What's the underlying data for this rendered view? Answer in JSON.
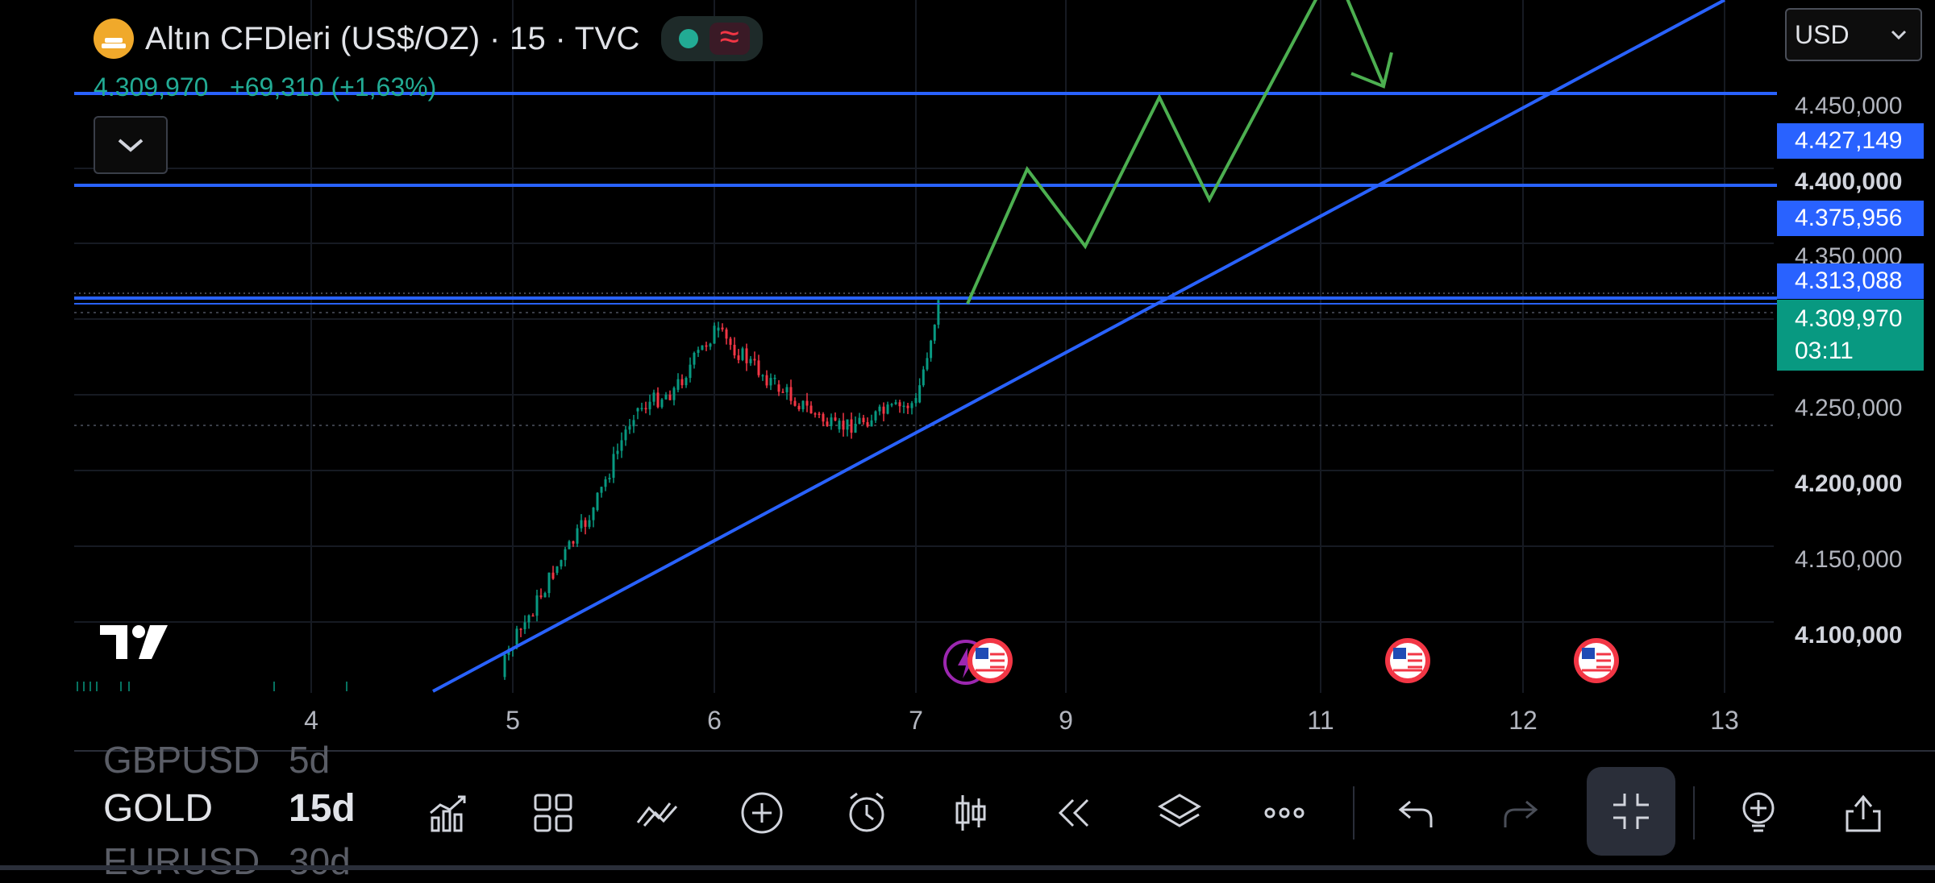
{
  "header": {
    "symbol_title": "Altın CFDleri (US$/OZ) · 15 · TVC",
    "wave_glyph": "≈",
    "last_price": "4.309,970",
    "change": "+69,310",
    "change_pct": "(+1,63%)",
    "up_color": "#22ab94"
  },
  "currency": {
    "value": "USD"
  },
  "price_axis": {
    "labels": [
      {
        "text": "4.450,000",
        "bold": false
      },
      {
        "text": "4.400,000",
        "bold": true
      },
      {
        "text": "4.350,000",
        "bold": false
      },
      {
        "text": "4.250,000",
        "bold": false
      },
      {
        "text": "4.200,000",
        "bold": true
      },
      {
        "text": "4.150,000",
        "bold": false
      },
      {
        "text": "4.100,000",
        "bold": true
      }
    ],
    "level_tags": [
      "4.427,149",
      "4.375,956",
      "4.313,088"
    ],
    "current_price": "4.309,970",
    "countdown": "03:11",
    "line_color": "#2962ff",
    "current_color": "#089981"
  },
  "time_axis": {
    "labels": [
      "4",
      "5",
      "6",
      "7",
      "9",
      "11",
      "12",
      "13"
    ]
  },
  "chart_data": {
    "type": "candlestick",
    "instrument": "Altın CFDleri (US$/OZ)",
    "interval": "15",
    "y_range": [
      4065,
      4475
    ],
    "horizontal_levels": [
      4427.149,
      4375.956,
      4313.088,
      4309.97
    ],
    "trendline": {
      "from": {
        "x": "4.6",
        "y": 4065
      },
      "to": {
        "x": "13",
        "y": 4475
      }
    },
    "approx_path_close": [
      {
        "x": "4.4",
        "y": 4075
      },
      {
        "x": "4.8",
        "y": 4068
      },
      {
        "x": "5",
        "y": 4120
      },
      {
        "x": "5.2",
        "y": 4160
      },
      {
        "x": "5.4",
        "y": 4195
      },
      {
        "x": "5.6",
        "y": 4250
      },
      {
        "x": "5.8",
        "y": 4262
      },
      {
        "x": "6",
        "y": 4295
      },
      {
        "x": "6.3",
        "y": 4265
      },
      {
        "x": "6.6",
        "y": 4240
      },
      {
        "x": "7",
        "y": 4255
      },
      {
        "x": "7.3",
        "y": 4309.97
      }
    ],
    "projection_path": [
      4309.97,
      4385,
      4342,
      4425,
      4368,
      4498,
      4432
    ],
    "projection_color": "#4caf50",
    "event_markers": 4
  },
  "watchlist": [
    {
      "symbol": "GBPUSD",
      "interval": "5d"
    },
    {
      "symbol": "GOLD",
      "interval": "15d"
    },
    {
      "symbol": "EURUSD",
      "interval": "30d"
    }
  ],
  "toolbar": {
    "icons": [
      "indicators-icon",
      "layout-grid-icon",
      "drawing-tools-icon",
      "add-icon",
      "alert-clock-icon",
      "candle-type-icon",
      "replay-icon",
      "layers-icon",
      "more-icon",
      "undo-icon",
      "redo-icon",
      "collapse-fullscreen-icon",
      "add-pin-icon",
      "share-icon"
    ]
  }
}
